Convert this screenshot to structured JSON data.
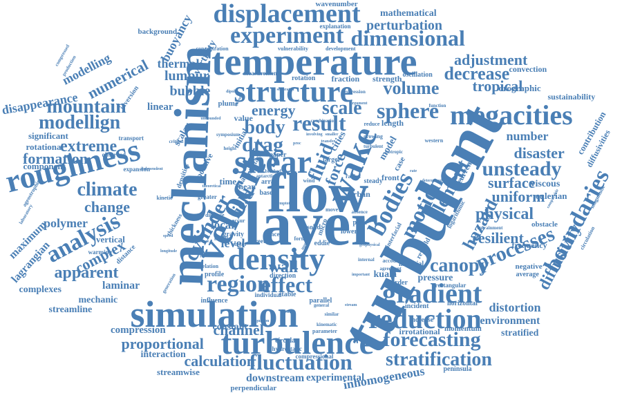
{
  "color": "#4a7fb5",
  "words": [
    {
      "text": "turbulent",
      "rot": "diag"
    },
    {
      "text": "layer",
      "rot": "h"
    },
    {
      "text": "temperature",
      "rot": "h"
    },
    {
      "text": "mechanism",
      "rot": "v"
    },
    {
      "text": "velocity",
      "rot": "diag2"
    },
    {
      "text": "flow",
      "rot": "h"
    },
    {
      "text": "simulation",
      "rot": "h"
    },
    {
      "text": "density",
      "rot": "h"
    },
    {
      "text": "turbulence",
      "rot": "h"
    },
    {
      "text": "structure",
      "rot": "h"
    },
    {
      "text": "shear",
      "rot": "h"
    },
    {
      "text": "megacities",
      "rot": "h"
    },
    {
      "text": "displacement",
      "rot": "h"
    },
    {
      "text": "experiment",
      "rot": "h"
    },
    {
      "text": "roughness",
      "rot": "diag3"
    },
    {
      "text": "wake",
      "rot": "diag4"
    },
    {
      "text": "gradient",
      "rot": "h"
    },
    {
      "text": "reduction",
      "rot": "h"
    },
    {
      "text": "bodies",
      "rot": "diag5"
    },
    {
      "text": "motion",
      "rot": "diag5"
    },
    {
      "text": "element",
      "rot": "diag5"
    },
    {
      "text": "result",
      "rot": "h"
    },
    {
      "text": "boundaries",
      "rot": "diag6"
    },
    {
      "text": "fluctuation",
      "rot": "h"
    },
    {
      "text": "forecasting",
      "rot": "h"
    },
    {
      "text": "stratification",
      "rot": "h"
    },
    {
      "text": "dimensional",
      "rot": "h"
    },
    {
      "text": "processes",
      "rot": "diag7"
    },
    {
      "text": "region",
      "rot": "h"
    },
    {
      "text": "effect",
      "rot": "h"
    },
    {
      "text": "sphere",
      "rot": "h"
    },
    {
      "text": "volume",
      "rot": "h"
    },
    {
      "text": "unsteady",
      "rot": "h"
    },
    {
      "text": "analysis",
      "rot": "diag8"
    },
    {
      "text": "hazard",
      "rot": "diag5"
    },
    {
      "text": "scale",
      "rot": "h"
    },
    {
      "text": "fluid",
      "rot": "diag9"
    },
    {
      "text": "cylinder",
      "rot": "diag9"
    },
    {
      "text": "drag",
      "rot": "h"
    },
    {
      "text": "body",
      "rot": "h"
    },
    {
      "text": "energy",
      "rot": "h"
    },
    {
      "text": "mountain",
      "rot": "h"
    },
    {
      "text": "modellign",
      "rot": "h"
    },
    {
      "text": "climate",
      "rot": "h"
    },
    {
      "text": "numerical",
      "rot": "diag8"
    },
    {
      "text": "extreme",
      "rot": "h"
    },
    {
      "text": "formation",
      "rot": "h"
    },
    {
      "text": "canopy",
      "rot": "h"
    },
    {
      "text": "physical",
      "rot": "h"
    },
    {
      "text": "uniform",
      "rot": "h"
    },
    {
      "text": "surface",
      "rot": "h"
    },
    {
      "text": "resilient",
      "rot": "h"
    },
    {
      "text": "decrease",
      "rot": "h"
    },
    {
      "text": "adjustment",
      "rot": "h"
    },
    {
      "text": "tropical",
      "rot": "h"
    },
    {
      "text": "perturbation",
      "rot": "h"
    },
    {
      "text": "diffusivity",
      "rot": "diag6"
    },
    {
      "text": "disaster",
      "rot": "h"
    },
    {
      "text": "apparent",
      "rot": "h"
    },
    {
      "text": "complex",
      "rot": "diag8"
    },
    {
      "text": "change",
      "rot": "h"
    },
    {
      "text": "calculation",
      "rot": "h"
    },
    {
      "text": "proportional",
      "rot": "h"
    },
    {
      "text": "channel",
      "rot": "h"
    },
    {
      "text": "inhomogeneous",
      "rot": "diag10"
    },
    {
      "text": "wall",
      "rot": "h"
    },
    {
      "text": "field",
      "rot": "diag9"
    },
    {
      "text": "force",
      "rot": "diag9"
    },
    {
      "text": "bubble",
      "rot": "h"
    },
    {
      "text": "lumpur",
      "rot": "h"
    },
    {
      "text": "thermal",
      "rot": "h"
    },
    {
      "text": "modelling",
      "rot": "diag8"
    },
    {
      "text": "mathematical",
      "rot": "h"
    },
    {
      "text": "wavenumber",
      "rot": "h"
    },
    {
      "text": "buoyancy",
      "rot": "diag8"
    },
    {
      "text": "vorticity",
      "rot": "diag8"
    },
    {
      "text": "disappearance",
      "rot": "diag11"
    },
    {
      "text": "number",
      "rot": "h"
    },
    {
      "text": "distortion",
      "rot": "h"
    },
    {
      "text": "environment",
      "rot": "h"
    },
    {
      "text": "stratified",
      "rot": "h"
    },
    {
      "text": "polymer",
      "rot": "h"
    },
    {
      "text": "laminar",
      "rot": "h"
    },
    {
      "text": "mechanic",
      "rot": "h"
    },
    {
      "text": "streamline",
      "rot": "h"
    },
    {
      "text": "compression",
      "rot": "h"
    },
    {
      "text": "interaction",
      "rot": "h"
    },
    {
      "text": "streamwise",
      "rot": "h"
    },
    {
      "text": "downstream",
      "rot": "h"
    },
    {
      "text": "experimental",
      "rot": "h"
    },
    {
      "text": "perpendicular",
      "rot": "h"
    },
    {
      "text": "constant",
      "rot": "h"
    },
    {
      "text": "complexes",
      "rot": "h"
    },
    {
      "text": "maximum",
      "rot": "diag8"
    },
    {
      "text": "lagrangian",
      "rot": "diag8"
    },
    {
      "text": "rotational",
      "rot": "h"
    },
    {
      "text": "component",
      "rot": "h"
    },
    {
      "text": "significant",
      "rot": "h"
    },
    {
      "text": "vertical",
      "rot": "h"
    },
    {
      "text": "linear",
      "rot": "h"
    },
    {
      "text": "scalar",
      "rot": "diag9"
    },
    {
      "text": "local",
      "rot": "h"
    },
    {
      "text": "level",
      "rot": "h"
    },
    {
      "text": "time",
      "rot": "h"
    },
    {
      "text": "kuala",
      "rot": "h"
    },
    {
      "text": "pressure",
      "rot": "h"
    },
    {
      "text": "viscous",
      "rot": "h"
    },
    {
      "text": "eulerian",
      "rot": "h"
    },
    {
      "text": "contribution",
      "rot": "diag6"
    },
    {
      "text": "diffusivities",
      "rot": "diag6"
    },
    {
      "text": "orographic",
      "rot": "h"
    },
    {
      "text": "sustainability",
      "rot": "h"
    },
    {
      "text": "convection",
      "rot": "h"
    },
    {
      "text": "obstacle",
      "rot": "h"
    },
    {
      "text": "frequency",
      "rot": "h"
    },
    {
      "text": "negative",
      "rot": "h"
    },
    {
      "text": "average",
      "rot": "h"
    },
    {
      "text": "momentum",
      "rot": "h"
    },
    {
      "text": "irrotational",
      "rot": "h"
    },
    {
      "text": "increase",
      "rot": "h"
    },
    {
      "text": "order",
      "rot": "h"
    },
    {
      "text": "material",
      "rot": "h"
    },
    {
      "text": "peninsula",
      "rot": "h"
    },
    {
      "text": "incident",
      "rot": "h"
    },
    {
      "text": "horizontal",
      "rot": "h"
    },
    {
      "text": "rectangular",
      "rot": "h"
    },
    {
      "text": "length",
      "rot": "h"
    },
    {
      "text": "strength",
      "rot": "h"
    },
    {
      "text": "fraction",
      "rot": "h"
    },
    {
      "text": "rotation",
      "rot": "h"
    },
    {
      "text": "oscillation",
      "rot": "h"
    },
    {
      "text": "background",
      "rot": "h"
    },
    {
      "text": "explanation",
      "rot": "h"
    },
    {
      "text": "concentration",
      "rot": "h"
    },
    {
      "text": "vulnerability",
      "rot": "h"
    },
    {
      "text": "development",
      "rot": "h"
    },
    {
      "text": "measurement",
      "rot": "h"
    },
    {
      "text": "inversion",
      "rot": "diag8"
    },
    {
      "text": "transport",
      "rot": "h"
    },
    {
      "text": "observed",
      "rot": "h"
    },
    {
      "text": "expansion",
      "rot": "h"
    },
    {
      "text": "warming",
      "rot": "h"
    },
    {
      "text": "distance",
      "rot": "diag8"
    },
    {
      "text": "plume",
      "rot": "h"
    },
    {
      "text": "value",
      "rot": "h"
    },
    {
      "text": "initial",
      "rot": "diag9"
    },
    {
      "text": "model",
      "rot": "diag5"
    },
    {
      "text": "cities",
      "rot": "diag9"
    },
    {
      "text": "case",
      "rot": "diag9"
    },
    {
      "text": "front",
      "rot": "h"
    },
    {
      "text": "current",
      "rot": "diag5"
    },
    {
      "text": "urban",
      "rot": "h"
    },
    {
      "text": "paper",
      "rot": "h"
    },
    {
      "text": "mean",
      "rot": "h"
    },
    {
      "text": "array",
      "rot": "h"
    },
    {
      "text": "base",
      "rot": "h"
    },
    {
      "text": "positive",
      "rot": "diag9"
    },
    {
      "text": "densities",
      "rot": "diag9"
    },
    {
      "text": "micro",
      "rot": "diag9"
    },
    {
      "text": "solid",
      "rot": "h"
    },
    {
      "text": "lower",
      "rot": "h"
    },
    {
      "text": "plate",
      "rot": "h"
    },
    {
      "text": "street",
      "rot": "h"
    },
    {
      "text": "concept",
      "rot": "h"
    },
    {
      "text": "profile",
      "rot": "h"
    },
    {
      "text": "direction",
      "rot": "h"
    },
    {
      "text": "stable",
      "rot": "h"
    },
    {
      "text": "parallel",
      "rot": "h"
    },
    {
      "text": "influence",
      "rot": "h"
    },
    {
      "text": "circular",
      "rot": "h"
    },
    {
      "text": "hydrostatic",
      "rot": "h"
    },
    {
      "text": "parameter",
      "rot": "h"
    },
    {
      "text": "compressional",
      "rot": "h"
    },
    {
      "text": "individual",
      "rot": "h"
    },
    {
      "text": "larger",
      "rot": "h"
    },
    {
      "text": "steady",
      "rot": "h"
    },
    {
      "text": "eddie",
      "rot": "h"
    },
    {
      "text": "greater",
      "rot": "h"
    },
    {
      "text": "gravity",
      "rot": "diag9"
    },
    {
      "text": "interface",
      "rot": "diag9"
    },
    {
      "text": "thickness",
      "rot": "diag5"
    },
    {
      "text": "reynold",
      "rot": "diag5"
    },
    {
      "text": "interfacial",
      "rot": "diag5"
    },
    {
      "text": "logarithmic",
      "rot": "h"
    },
    {
      "text": "western",
      "rot": "h"
    },
    {
      "text": "growing",
      "rot": "h"
    },
    {
      "text": "account",
      "rot": "h"
    },
    {
      "text": "group",
      "rot": "h"
    },
    {
      "text": "strain",
      "rot": "diag9"
    },
    {
      "text": "heat",
      "rot": "h"
    },
    {
      "text": "form",
      "rot": "h"
    },
    {
      "text": "wind",
      "rot": "h"
    },
    {
      "text": "move",
      "rot": "h"
    },
    {
      "text": "radius",
      "rot": "h"
    },
    {
      "text": "reduce",
      "rot": "h"
    },
    {
      "text": "displace",
      "rot": "h"
    },
    {
      "text": "relation",
      "rot": "h"
    },
    {
      "text": "kinetic",
      "rot": "h"
    },
    {
      "text": "internal",
      "rot": "h"
    },
    {
      "text": "agreement",
      "rot": "h"
    },
    {
      "text": "entrainment",
      "rot": "diag8"
    },
    {
      "text": "compressed",
      "rot": "diag8"
    },
    {
      "text": "production",
      "rot": "diag8"
    },
    {
      "text": "ageostrophic",
      "rot": "diag8"
    },
    {
      "text": "laboratory",
      "rot": "h"
    },
    {
      "text": "kinematic",
      "rot": "h"
    },
    {
      "text": "general",
      "rot": "h"
    },
    {
      "text": "theory",
      "rot": "diag9"
    },
    {
      "text": "upper",
      "rot": "h"
    },
    {
      "text": "occur",
      "rot": "h"
    },
    {
      "text": "antarctic",
      "rot": "h"
    },
    {
      "text": "symposium",
      "rot": "h"
    },
    {
      "text": "function",
      "rot": "h"
    },
    {
      "text": "argument",
      "rot": "h"
    },
    {
      "text": "expression",
      "rot": "diag6"
    },
    {
      "text": "circulation",
      "rot": "diag6"
    },
    {
      "text": "magnitude",
      "rot": "diag8"
    },
    {
      "text": "generation",
      "rot": "h"
    },
    {
      "text": "similar",
      "rot": "h"
    },
    {
      "text": "isotropic",
      "rot": "h"
    },
    {
      "text": "blocked",
      "rot": "h"
    },
    {
      "text": "height",
      "rot": "h"
    },
    {
      "text": "critical",
      "rot": "h"
    },
    {
      "text": "absence",
      "rot": "h"
    },
    {
      "text": "equation",
      "rot": "h"
    },
    {
      "text": "perimeter",
      "rot": "h"
    },
    {
      "text": "unbounded",
      "rot": "h"
    },
    {
      "text": "recent",
      "rot": "h"
    },
    {
      "text": "dipole",
      "rot": "h"
    },
    {
      "text": "involving",
      "rot": "h"
    },
    {
      "text": "independent",
      "rot": "h"
    },
    {
      "text": "speed",
      "rot": "h"
    },
    {
      "text": "geophysical",
      "rot": "h"
    },
    {
      "text": "important",
      "rot": "h"
    },
    {
      "text": "combination",
      "rot": "h"
    },
    {
      "text": "asymptotic",
      "rot": "diag9"
    },
    {
      "text": "separated",
      "rot": "h"
    },
    {
      "text": "turbulent",
      "rot": "h",
      "tiny": true
    },
    {
      "text": "rate",
      "rot": "h"
    },
    {
      "text": "stream",
      "rot": "diag9"
    },
    {
      "text": "comparable",
      "rot": "diag6"
    },
    {
      "text": "difference",
      "rot": "h"
    },
    {
      "text": "determined",
      "rot": "h"
    },
    {
      "text": "longitude",
      "rot": "h"
    },
    {
      "text": "theoretical",
      "rot": "h"
    },
    {
      "text": "smaller",
      "rot": "h"
    },
    {
      "text": "transfer",
      "rot": "h"
    },
    {
      "text": "proc",
      "rot": "h"
    },
    {
      "text": "particle",
      "rot": "h"
    },
    {
      "text": "slope",
      "rot": "h"
    },
    {
      "text": "side",
      "rot": "h"
    }
  ]
}
